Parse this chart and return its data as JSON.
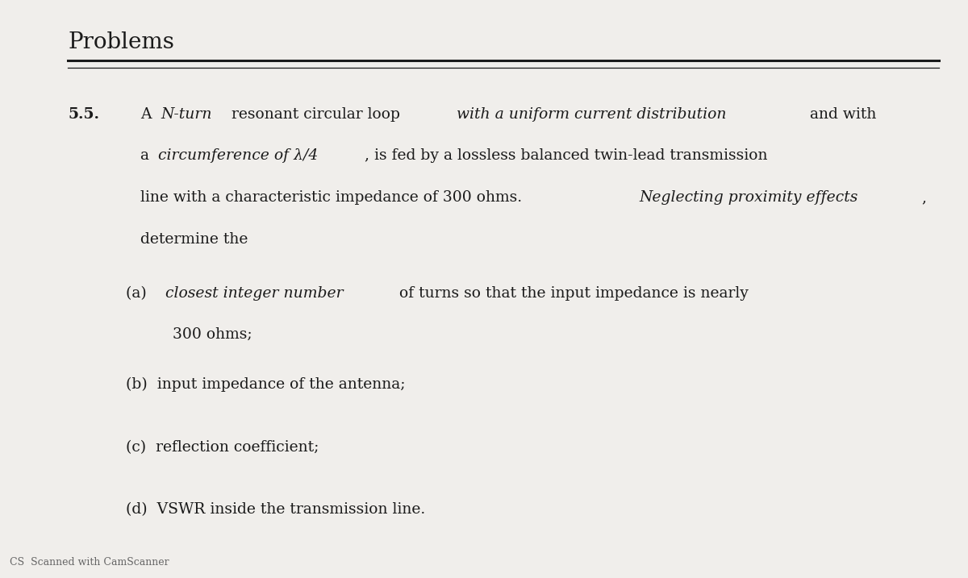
{
  "background_color": "#f0eeeb",
  "title": "Problems",
  "title_fontsize": 20,
  "title_font": "serif",
  "title_weight": "normal",
  "problem_number": "5.5.",
  "body_fontsize": 13.5,
  "body_font": "serif",
  "footer_text": "CS  Scanned with CamScanner",
  "footer_fontsize": 9,
  "text_color": "#1a1a1a"
}
